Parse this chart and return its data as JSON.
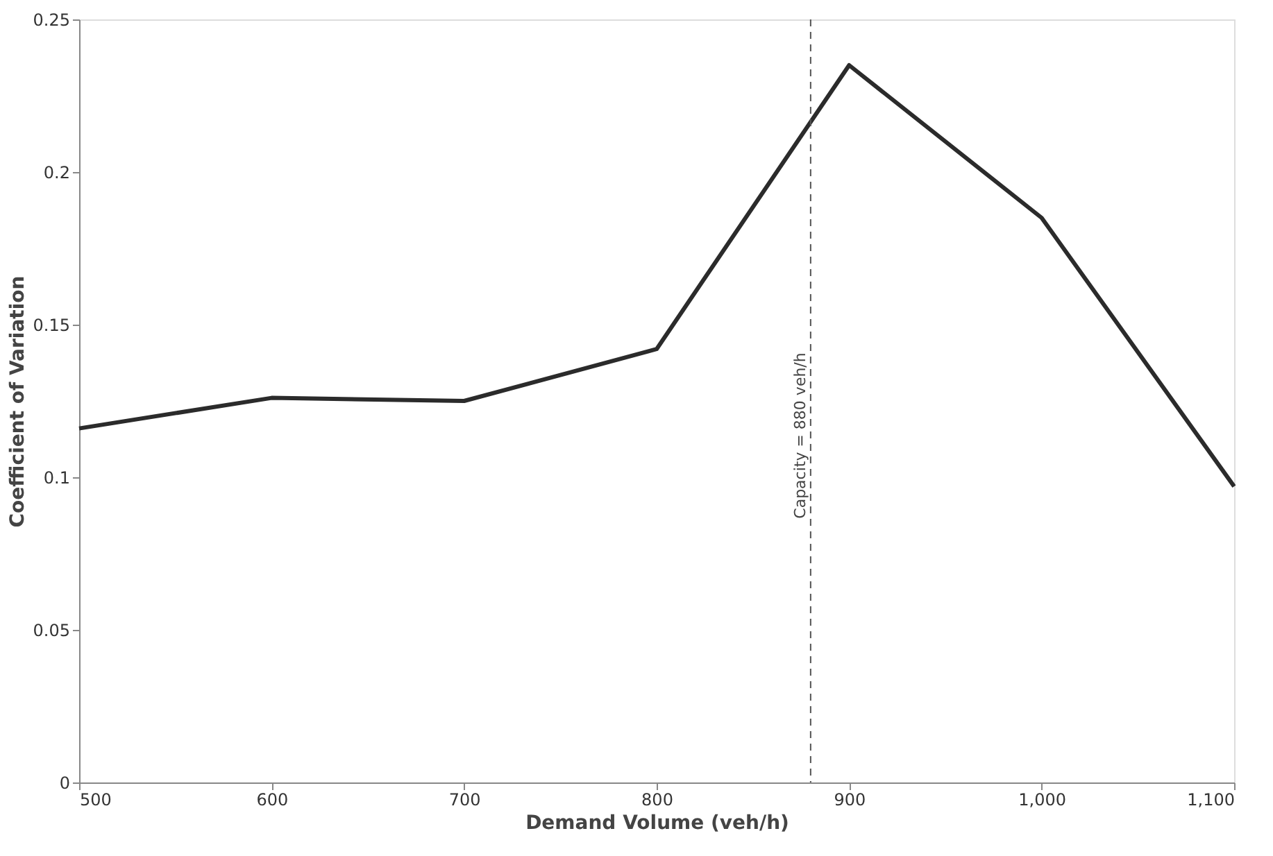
{
  "chart_data": {
    "type": "line",
    "xlabel": "Demand Volume (veh/h)",
    "ylabel": "Coefficient of Variation",
    "x": [
      500,
      600,
      700,
      800,
      900,
      1000,
      1100
    ],
    "series": [
      {
        "color": "#2b2b2b",
        "values": [
          0.116,
          0.126,
          0.125,
          0.142,
          0.235,
          0.185,
          0.097
        ]
      }
    ],
    "xlim": [
      500,
      1100
    ],
    "xticks": [
      500,
      600,
      700,
      800,
      900,
      {
        "value": 1000,
        "label": "1,000"
      },
      {
        "value": 1100,
        "label": "1,100"
      }
    ],
    "ylim": [
      0,
      0.25
    ],
    "yticks": [
      0,
      0.05,
      0.1,
      0.15,
      0.2,
      0.25
    ],
    "ref_lines": [
      {
        "axis": "x",
        "value": 880,
        "label": "Capacity = 880 veh/h",
        "color": "#555555",
        "line_style": "dashed"
      }
    ],
    "grid": false,
    "marker": "none",
    "line_style": "solid"
  }
}
